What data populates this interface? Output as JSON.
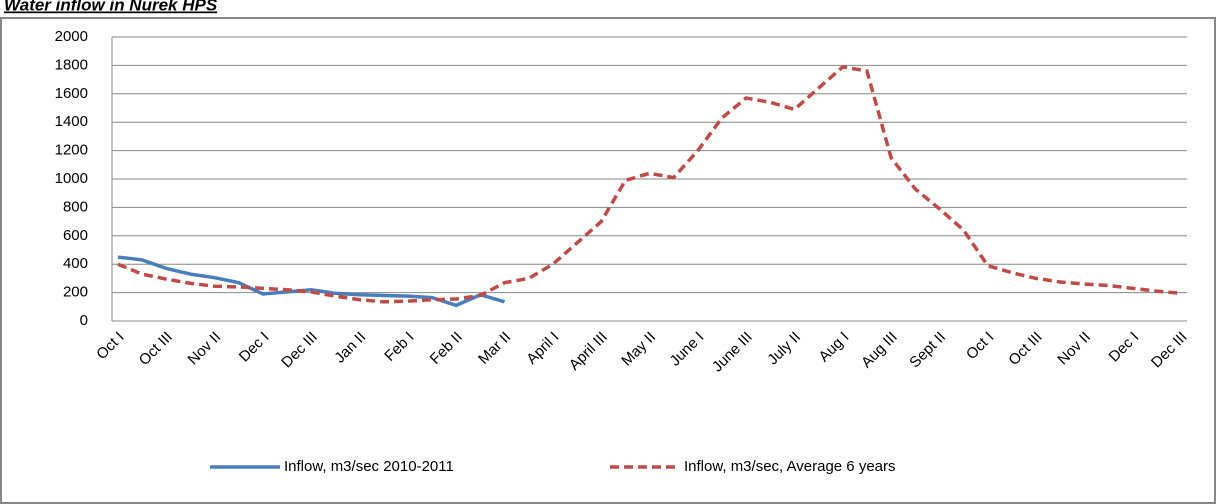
{
  "chart_data": {
    "type": "line",
    "title": "Water inflow in Nurek HPS",
    "categories": [
      "Oct I",
      null,
      "Oct III",
      null,
      "Nov II",
      null,
      "Dec I",
      null,
      "Dec III",
      null,
      "Jan II",
      null,
      "Feb I",
      null,
      "Feb II",
      null,
      "Mar II",
      null,
      "April I",
      null,
      "April III",
      null,
      "May II",
      null,
      "June I",
      null,
      "June III",
      null,
      "July II",
      null,
      "Aug I",
      null,
      "Aug III",
      null,
      "Sept II",
      null,
      "Oct I",
      null,
      "Oct III",
      null,
      "Nov II",
      null,
      "Dec I",
      null,
      "Dec III"
    ],
    "series": [
      {
        "name": "Inflow, m3/sec 2010-2011",
        "color": "#4a7ebb",
        "dashed": false,
        "values": [
          450,
          430,
          370,
          330,
          305,
          270,
          190,
          205,
          220,
          195,
          185,
          180,
          175,
          165,
          110,
          185,
          135,
          null,
          null,
          null,
          null,
          null,
          null,
          null,
          null,
          null,
          null,
          null,
          null,
          null,
          null,
          null,
          null,
          null,
          null,
          null,
          null,
          null,
          null,
          null,
          null,
          null,
          null,
          null,
          null
        ]
      },
      {
        "name": "Inflow, m3/sec, Average 6 years",
        "color": "#be4b48",
        "dashed": true,
        "values": [
          400,
          330,
          295,
          265,
          245,
          240,
          230,
          220,
          205,
          175,
          150,
          135,
          140,
          150,
          155,
          180,
          270,
          300,
          400,
          550,
          700,
          990,
          1040,
          1010,
          1200,
          1430,
          1570,
          1540,
          1490,
          1640,
          1790,
          1760,
          1150,
          930,
          790,
          640,
          390,
          340,
          300,
          275,
          260,
          250,
          230,
          210,
          195
        ]
      }
    ],
    "ylim": [
      0,
      2000
    ],
    "yticks": [
      0,
      200,
      400,
      600,
      800,
      1000,
      1200,
      1400,
      1600,
      1800,
      2000
    ],
    "grid": true,
    "legend": "bottom"
  }
}
